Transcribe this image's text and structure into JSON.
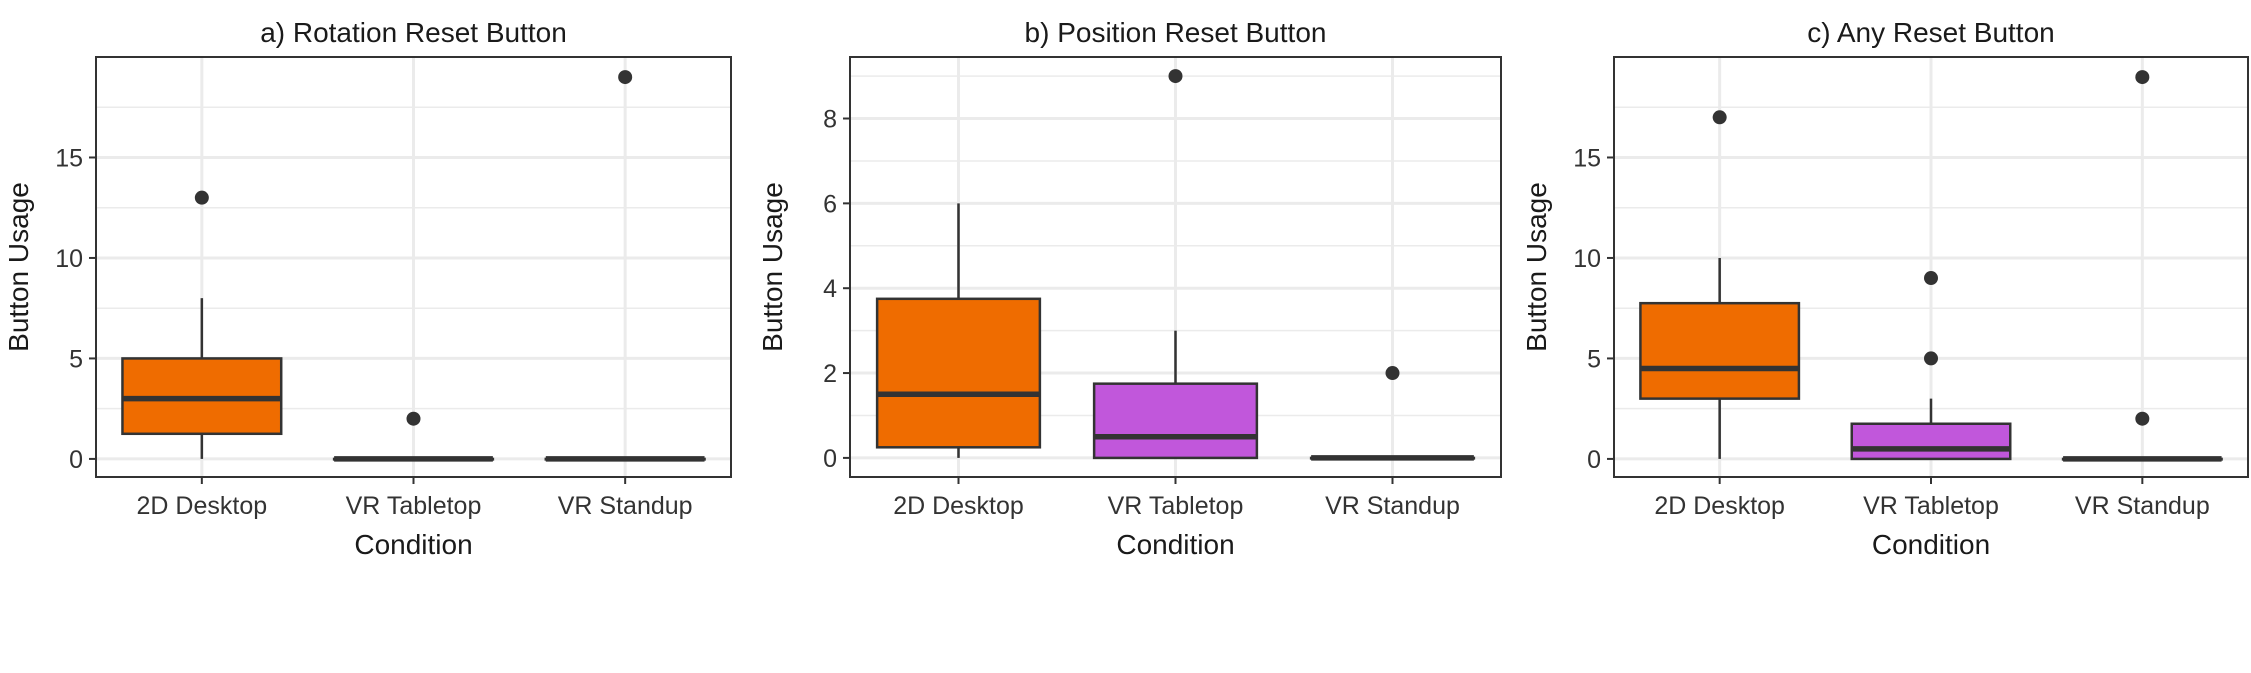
{
  "colors": {
    "2D Desktop": "#ef6c00",
    "VR Tabletop": "#c157db",
    "VR Standup": "#c157db",
    "outline": "#333333",
    "grid": "#ebebeb"
  },
  "chart_data": [
    {
      "type": "boxplot",
      "title": "a) Rotation Reset Button",
      "xlabel": "Condition",
      "ylabel": "Button Usage",
      "categories": [
        "2D Desktop",
        "VR Tabletop",
        "VR Standup"
      ],
      "ylim": [
        -0.9,
        20
      ],
      "yticks": [
        0,
        5,
        10,
        15
      ],
      "grid": true,
      "boxes": [
        {
          "category": "2D Desktop",
          "min": 0,
          "q1": 1.25,
          "median": 3,
          "q3": 5,
          "max": 8,
          "outliers": [
            13
          ]
        },
        {
          "category": "VR Tabletop",
          "min": 0,
          "q1": 0,
          "median": 0,
          "q3": 0,
          "max": 0,
          "outliers": [
            2
          ]
        },
        {
          "category": "VR Standup",
          "min": 0,
          "q1": 0,
          "median": 0,
          "q3": 0,
          "max": 0,
          "outliers": [
            19
          ]
        }
      ]
    },
    {
      "type": "boxplot",
      "title": "b) Position Reset Button",
      "xlabel": "Condition",
      "ylabel": "Button Usage",
      "categories": [
        "2D Desktop",
        "VR Tabletop",
        "VR Standup"
      ],
      "ylim": [
        -0.45,
        9.45
      ],
      "yticks": [
        0,
        2,
        4,
        6,
        8
      ],
      "grid": true,
      "boxes": [
        {
          "category": "2D Desktop",
          "min": 0,
          "q1": 0.25,
          "median": 1.5,
          "q3": 3.75,
          "max": 6,
          "outliers": []
        },
        {
          "category": "VR Tabletop",
          "min": 0,
          "q1": 0,
          "median": 0.5,
          "q3": 1.75,
          "max": 3,
          "outliers": [
            9
          ]
        },
        {
          "category": "VR Standup",
          "min": 0,
          "q1": 0,
          "median": 0,
          "q3": 0,
          "max": 0,
          "outliers": [
            2
          ]
        }
      ]
    },
    {
      "type": "boxplot",
      "title": "c) Any Reset Button",
      "xlabel": "Condition",
      "ylabel": "Button Usage",
      "categories": [
        "2D Desktop",
        "VR Tabletop",
        "VR Standup"
      ],
      "ylim": [
        -0.9,
        20
      ],
      "yticks": [
        0,
        5,
        10,
        15
      ],
      "grid": true,
      "boxes": [
        {
          "category": "2D Desktop",
          "min": 0,
          "q1": 3,
          "median": 4.5,
          "q3": 7.75,
          "max": 10,
          "outliers": [
            17
          ]
        },
        {
          "category": "VR Tabletop",
          "min": 0,
          "q1": 0,
          "median": 0.5,
          "q3": 1.75,
          "max": 3,
          "outliers": [
            5,
            9
          ]
        },
        {
          "category": "VR Standup",
          "min": 0,
          "q1": 0,
          "median": 0,
          "q3": 0,
          "max": 0,
          "outliers": [
            2,
            19
          ]
        }
      ]
    }
  ]
}
